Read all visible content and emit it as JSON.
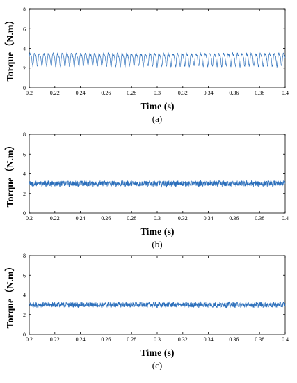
{
  "chart_data": [
    {
      "type": "line",
      "panel_label": "(a)",
      "xlabel": "Time (s)",
      "ylabel": "Torque（N.m）",
      "xlim": [
        0.2,
        0.4
      ],
      "ylim": [
        0,
        8
      ],
      "x_ticks": [
        "0.2",
        "0.22",
        "0.24",
        "0.26",
        "0.28",
        "0.3",
        "0.32",
        "0.34",
        "0.36",
        "0.38",
        "0.4"
      ],
      "y_ticks": [
        "0",
        "2",
        "4",
        "6",
        "8"
      ],
      "grid": false,
      "line_color": "#2c6fbb",
      "series": [
        {
          "mean": 2.95,
          "ripple_amplitude": 0.6,
          "ripple_period_s": 0.0036,
          "noise": 0.12,
          "min": 2.1,
          "max": 3.9
        }
      ]
    },
    {
      "type": "line",
      "panel_label": "(b)",
      "xlabel": "Time (s)",
      "ylabel": "Torque（N.m）",
      "xlim": [
        0.2,
        0.4
      ],
      "ylim": [
        0,
        8
      ],
      "x_ticks": [
        "0.2",
        "0.22",
        "0.24",
        "0.26",
        "0.28",
        "0.3",
        "0.32",
        "0.34",
        "0.36",
        "0.38",
        "0.4"
      ],
      "y_ticks": [
        "0",
        "2",
        "4",
        "6",
        "8"
      ],
      "grid": false,
      "line_color": "#2c6fbb",
      "series": [
        {
          "mean": 3.0,
          "ripple_amplitude": 0.05,
          "ripple_period_s": 0.0036,
          "noise": 0.28,
          "min": 2.4,
          "max": 3.6
        }
      ]
    },
    {
      "type": "line",
      "panel_label": "(c)",
      "xlabel": "Time (s)",
      "ylabel": "Torque（N.m）",
      "xlim": [
        0.2,
        0.4
      ],
      "ylim": [
        0,
        8
      ],
      "x_ticks": [
        "0.2",
        "0.22",
        "0.24",
        "0.26",
        "0.28",
        "0.3",
        "0.32",
        "0.34",
        "0.36",
        "0.38",
        "0.4"
      ],
      "y_ticks": [
        "0",
        "2",
        "4",
        "6",
        "8"
      ],
      "grid": false,
      "line_color": "#2c6fbb",
      "series": [
        {
          "mean": 3.0,
          "ripple_amplitude": 0.05,
          "ripple_period_s": 0.0036,
          "noise": 0.26,
          "min": 2.4,
          "max": 3.6
        }
      ]
    }
  ]
}
